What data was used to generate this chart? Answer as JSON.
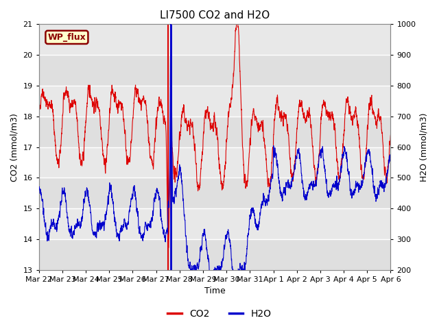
{
  "title": "LI7500 CO2 and H2O",
  "xlabel": "Time",
  "ylabel_left": "CO2 (mmol/m3)",
  "ylabel_right": "H2O (mmol/m3)",
  "ylim_left": [
    13.0,
    21.0
  ],
  "ylim_right": [
    200,
    1000
  ],
  "yticks_left": [
    13.0,
    14.0,
    15.0,
    16.0,
    17.0,
    18.0,
    19.0,
    20.0,
    21.0
  ],
  "yticks_right": [
    200,
    300,
    400,
    500,
    600,
    700,
    800,
    900,
    1000
  ],
  "background_color": "#e8e8e8",
  "figure_color": "#ffffff",
  "label_box_text": "WP_flux",
  "label_box_bg": "#ffffcc",
  "label_box_edge": "#8b0000",
  "co2_color": "#dd0000",
  "h2o_color": "#0000cc",
  "legend_co2": "CO2",
  "legend_h2o": "H2O",
  "vline_red_x": 5.52,
  "vline_blue_x": 5.63,
  "xtick_labels": [
    "Mar 22",
    "Mar 23",
    "Mar 24",
    "Mar 25",
    "Mar 26",
    "Mar 27",
    "Mar 28",
    "Mar 29",
    "Mar 30",
    "Mar 31",
    "Apr 1",
    "Apr 2",
    "Apr 3",
    "Apr 4",
    "Apr 5",
    "Apr 6"
  ],
  "xtick_positions": [
    0,
    1,
    2,
    3,
    4,
    5,
    6,
    7,
    8,
    9,
    10,
    11,
    12,
    13,
    14,
    15
  ],
  "xlim": [
    0,
    15
  ],
  "figsize": [
    6.4,
    4.8
  ],
  "dpi": 100
}
